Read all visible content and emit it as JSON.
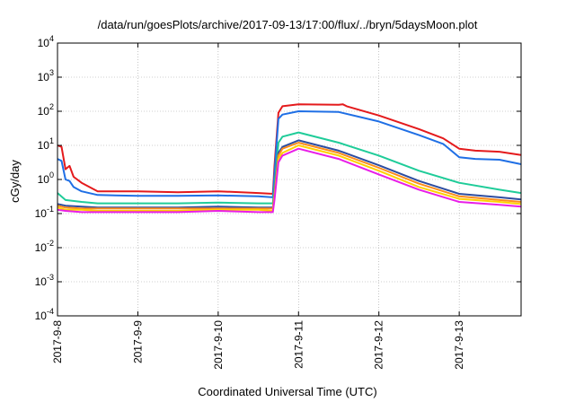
{
  "chart_data": {
    "type": "line",
    "title": "/data/run/goesPlots/archive/2017-09-13/17:00/flux/../bryn/5daysMoon.plot",
    "xlabel": "Coordinated Universal Time (UTC)",
    "ylabel": "cGy/day",
    "yscale": "log",
    "ylim": [
      0.0001,
      10000
    ],
    "xlim": [
      0,
      5.77
    ],
    "grid": true,
    "legend": "none",
    "x_ticks": [
      {
        "value": 0,
        "label": "2017-9-8"
      },
      {
        "value": 1,
        "label": "2017-9-9"
      },
      {
        "value": 2,
        "label": "2017-9-10"
      },
      {
        "value": 3,
        "label": "2017-9-11"
      },
      {
        "value": 4,
        "label": "2017-9-12"
      },
      {
        "value": 5,
        "label": "2017-9-13"
      }
    ],
    "y_ticks": [
      {
        "value": 0.0001,
        "base": "10",
        "exp": "-4"
      },
      {
        "value": 0.001,
        "base": "10",
        "exp": "-3"
      },
      {
        "value": 0.01,
        "base": "10",
        "exp": "-2"
      },
      {
        "value": 0.1,
        "base": "10",
        "exp": "-1"
      },
      {
        "value": 1,
        "base": "10",
        "exp": "0"
      },
      {
        "value": 10,
        "base": "10",
        "exp": "1"
      },
      {
        "value": 100,
        "base": "10",
        "exp": "2"
      },
      {
        "value": 1000,
        "base": "10",
        "exp": "3"
      },
      {
        "value": 10000,
        "base": "10",
        "exp": "4"
      }
    ],
    "series": [
      {
        "color": "#e41a1c",
        "x": [
          0,
          0.05,
          0.1,
          0.15,
          0.2,
          0.3,
          0.5,
          1.0,
          1.5,
          2.0,
          2.5,
          2.68,
          2.7,
          2.75,
          2.8,
          3.0,
          3.5,
          3.55,
          3.6,
          4.0,
          4.5,
          4.8,
          5.0,
          5.2,
          5.5,
          5.77
        ],
        "y": [
          10,
          9,
          2,
          2.5,
          1.2,
          0.8,
          0.45,
          0.45,
          0.42,
          0.45,
          0.4,
          0.38,
          2.5,
          90,
          140,
          160,
          155,
          160,
          140,
          75,
          30,
          16,
          8,
          7,
          6.5,
          5.2
        ]
      },
      {
        "color": "#1f6fe5",
        "x": [
          0,
          0.05,
          0.1,
          0.15,
          0.2,
          0.3,
          0.5,
          1.0,
          1.5,
          2.0,
          2.5,
          2.68,
          2.7,
          2.75,
          2.8,
          3.0,
          3.5,
          4.0,
          4.5,
          4.8,
          5.0,
          5.2,
          5.5,
          5.77
        ],
        "y": [
          4,
          3.5,
          1.0,
          0.9,
          0.6,
          0.45,
          0.35,
          0.33,
          0.33,
          0.34,
          0.32,
          0.3,
          1.5,
          60,
          80,
          100,
          95,
          50,
          20,
          11,
          4.5,
          4,
          3.8,
          2.8
        ]
      },
      {
        "color": "#1fcc99",
        "x": [
          0,
          0.1,
          0.3,
          0.5,
          1.0,
          1.5,
          2.0,
          2.5,
          2.68,
          2.7,
          2.75,
          2.8,
          3.0,
          3.5,
          4.0,
          4.5,
          5.0,
          5.5,
          5.77
        ],
        "y": [
          0.4,
          0.25,
          0.22,
          0.2,
          0.2,
          0.2,
          0.21,
          0.2,
          0.2,
          0.6,
          12,
          18,
          24,
          12,
          5,
          1.8,
          0.8,
          0.5,
          0.4
        ]
      },
      {
        "color": "#2e4da0",
        "x": [
          0,
          0.1,
          0.3,
          0.5,
          1.0,
          1.5,
          2.0,
          2.5,
          2.68,
          2.7,
          2.75,
          2.8,
          3.0,
          3.5,
          4.0,
          4.5,
          5.0,
          5.5,
          5.77
        ],
        "y": [
          0.19,
          0.17,
          0.16,
          0.15,
          0.15,
          0.15,
          0.16,
          0.15,
          0.15,
          0.4,
          6,
          9,
          14,
          7,
          2.6,
          0.9,
          0.38,
          0.3,
          0.26
        ]
      },
      {
        "color": "#ff8c1a",
        "x": [
          0,
          0.1,
          0.3,
          0.5,
          1.0,
          1.5,
          2.0,
          2.5,
          2.68,
          2.7,
          2.75,
          2.8,
          3.0,
          3.5,
          4.0,
          4.5,
          5.0,
          5.5,
          5.77
        ],
        "y": [
          0.17,
          0.15,
          0.14,
          0.14,
          0.14,
          0.14,
          0.14,
          0.14,
          0.14,
          0.35,
          5,
          8,
          12,
          6,
          2.2,
          0.75,
          0.32,
          0.25,
          0.22
        ]
      },
      {
        "color": "#ffd000",
        "x": [
          0,
          0.1,
          0.3,
          0.5,
          1.0,
          1.5,
          2.0,
          2.5,
          2.68,
          2.7,
          2.75,
          2.8,
          3.0,
          3.5,
          4.0,
          4.5,
          5.0,
          5.5,
          5.77
        ],
        "y": [
          0.15,
          0.13,
          0.13,
          0.12,
          0.12,
          0.12,
          0.13,
          0.13,
          0.12,
          0.3,
          4,
          6,
          10,
          5,
          1.8,
          0.6,
          0.27,
          0.22,
          0.19
        ]
      },
      {
        "color": "#e81ee8",
        "x": [
          0,
          0.1,
          0.3,
          0.5,
          1.0,
          1.5,
          2.0,
          2.5,
          2.68,
          2.7,
          2.75,
          2.8,
          3.0,
          3.5,
          4.0,
          4.5,
          5.0,
          5.5,
          5.77
        ],
        "y": [
          0.13,
          0.12,
          0.11,
          0.11,
          0.11,
          0.11,
          0.12,
          0.11,
          0.11,
          0.25,
          3.2,
          5,
          8,
          4,
          1.4,
          0.5,
          0.22,
          0.18,
          0.16
        ]
      }
    ]
  }
}
